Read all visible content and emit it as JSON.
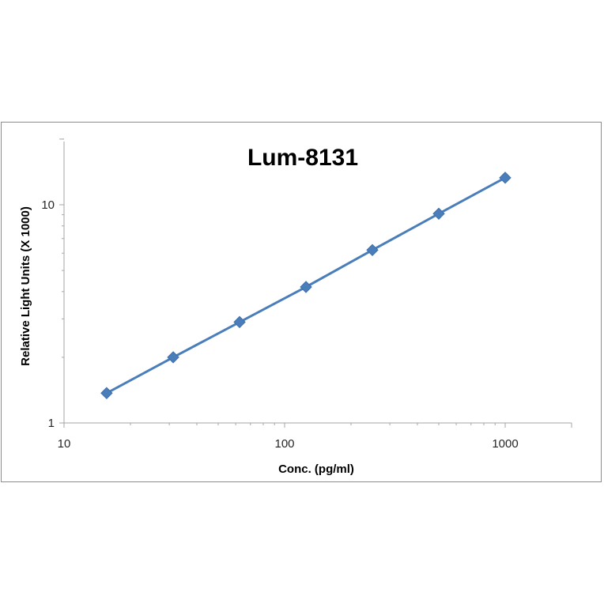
{
  "chart_data": {
    "type": "line",
    "title": "Lum-8131",
    "xlabel": "Conc. (pg/ml)",
    "ylabel": "Relative Light Units (X 1000)",
    "x_scale": "log",
    "y_scale": "log",
    "xlim": [
      10,
      2000
    ],
    "ylim": [
      1,
      20
    ],
    "x_ticks": [
      "10",
      "100",
      "1000"
    ],
    "y_ticks": [
      "1",
      "10"
    ],
    "grid": false,
    "legend": "none",
    "series": [
      {
        "x": [
          15.6,
          31.25,
          62.5,
          125,
          250,
          500,
          1000
        ],
        "y": [
          1.37,
          2.0,
          2.9,
          4.2,
          6.2,
          9.1,
          13.3
        ]
      }
    ],
    "colors": {
      "series": "#4a7ebb",
      "marker": "#4a7ebb",
      "axis": "#a6a6a6"
    },
    "marker": "diamond"
  }
}
